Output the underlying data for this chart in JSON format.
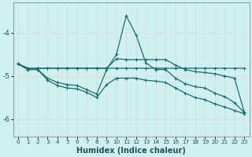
{
  "xlabel": "Humidex (Indice chaleur)",
  "background_color": "#cff0f0",
  "grid_color": "#e8e8e8",
  "line_color": "#1e6b6b",
  "xlim": [
    -0.5,
    23.5
  ],
  "ylim": [
    -6.4,
    -3.3
  ],
  "yticks": [
    -6,
    -5,
    -4
  ],
  "line1_x": [
    0,
    1,
    2,
    3,
    4,
    5,
    6,
    7,
    8,
    9,
    10,
    11,
    12,
    13,
    14,
    15,
    16,
    17,
    18,
    19,
    20,
    21,
    22,
    23
  ],
  "line1_y": [
    -4.72,
    -4.82,
    -4.82,
    -4.82,
    -4.82,
    -4.82,
    -4.82,
    -4.82,
    -4.82,
    -4.82,
    -4.6,
    -4.62,
    -4.62,
    -4.62,
    -4.62,
    -4.62,
    -4.75,
    -4.85,
    -4.9,
    -4.92,
    -4.95,
    -5.0,
    -5.05,
    -5.85
  ],
  "line2_x": [
    0,
    1,
    2,
    3,
    4,
    5,
    6,
    7,
    8,
    9,
    10,
    11,
    12,
    13,
    14,
    15,
    16,
    17,
    18,
    19,
    20,
    21,
    22,
    23
  ],
  "line2_y": [
    -4.72,
    -4.82,
    -4.82,
    -4.82,
    -4.82,
    -4.82,
    -4.82,
    -4.82,
    -4.82,
    -4.82,
    -4.82,
    -4.82,
    -4.82,
    -4.82,
    -4.82,
    -4.82,
    -4.82,
    -4.82,
    -4.82,
    -4.82,
    -4.82,
    -4.82,
    -4.82,
    -4.82
  ],
  "line3_x": [
    0,
    1,
    2,
    3,
    4,
    5,
    6,
    7,
    8,
    9,
    10,
    11,
    12,
    13,
    14,
    15,
    16,
    17,
    18,
    19,
    20,
    21,
    22,
    23
  ],
  "line3_y": [
    -4.72,
    -4.85,
    -4.85,
    -5.05,
    -5.15,
    -5.2,
    -5.22,
    -5.32,
    -5.42,
    -4.85,
    -4.5,
    -3.6,
    -4.05,
    -4.7,
    -4.85,
    -4.85,
    -5.05,
    -5.18,
    -5.25,
    -5.28,
    -5.4,
    -5.48,
    -5.62,
    -5.85
  ],
  "line4_x": [
    0,
    1,
    2,
    3,
    4,
    5,
    6,
    7,
    8,
    9,
    10,
    11,
    12,
    13,
    14,
    15,
    16,
    17,
    18,
    19,
    20,
    21,
    22,
    23
  ],
  "line4_y": [
    -4.72,
    -4.85,
    -4.85,
    -5.1,
    -5.22,
    -5.28,
    -5.3,
    -5.38,
    -5.5,
    -5.2,
    -5.05,
    -5.05,
    -5.05,
    -5.1,
    -5.12,
    -5.15,
    -5.28,
    -5.4,
    -5.5,
    -5.55,
    -5.65,
    -5.72,
    -5.8,
    -5.88
  ]
}
